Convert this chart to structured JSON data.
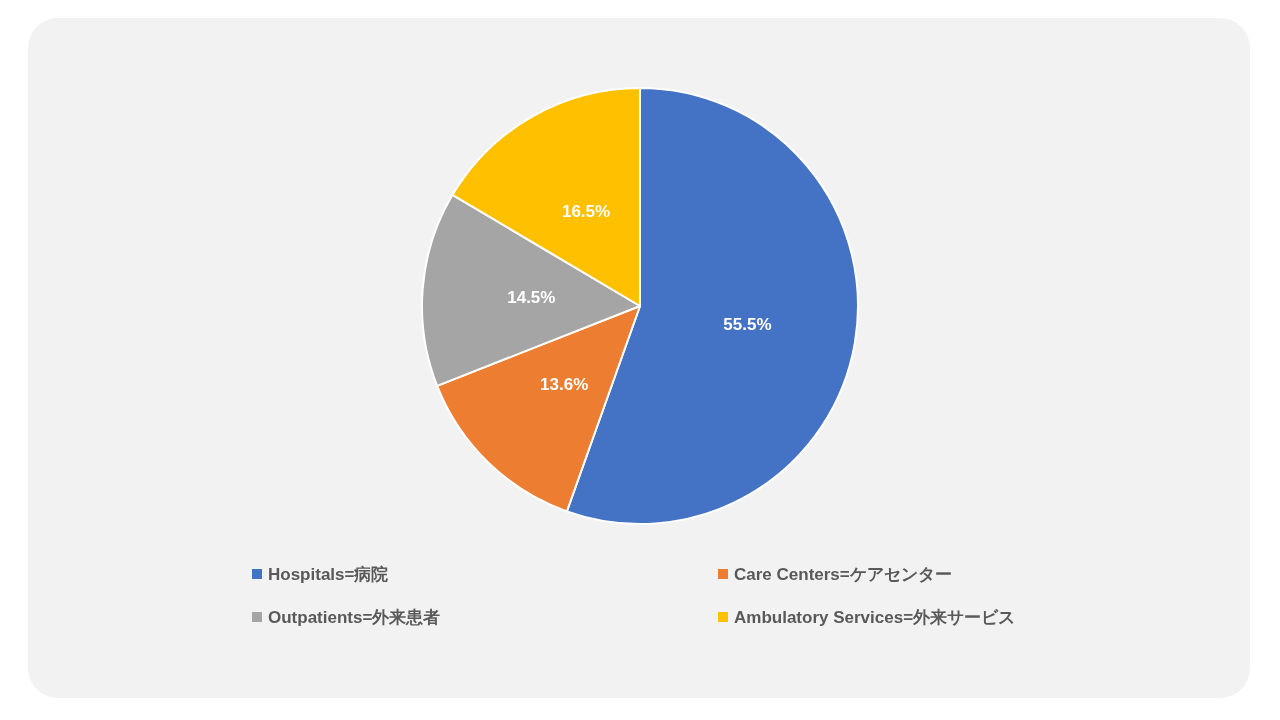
{
  "chart_data": {
    "type": "pie",
    "categories": [
      "Hospitals=病院",
      "Care Centers=ケアセンター",
      "Outpatients=外来患者",
      "Ambulatory Services=外来サービス"
    ],
    "values": [
      55.5,
      13.6,
      14.5,
      16.5
    ],
    "colors": [
      "#4472c4",
      "#ed7d31",
      "#a5a5a5",
      "#ffc000"
    ],
    "value_labels": [
      "55.5%",
      "13.6%",
      "14.5%",
      "16.5%"
    ],
    "legend": "bottom"
  }
}
